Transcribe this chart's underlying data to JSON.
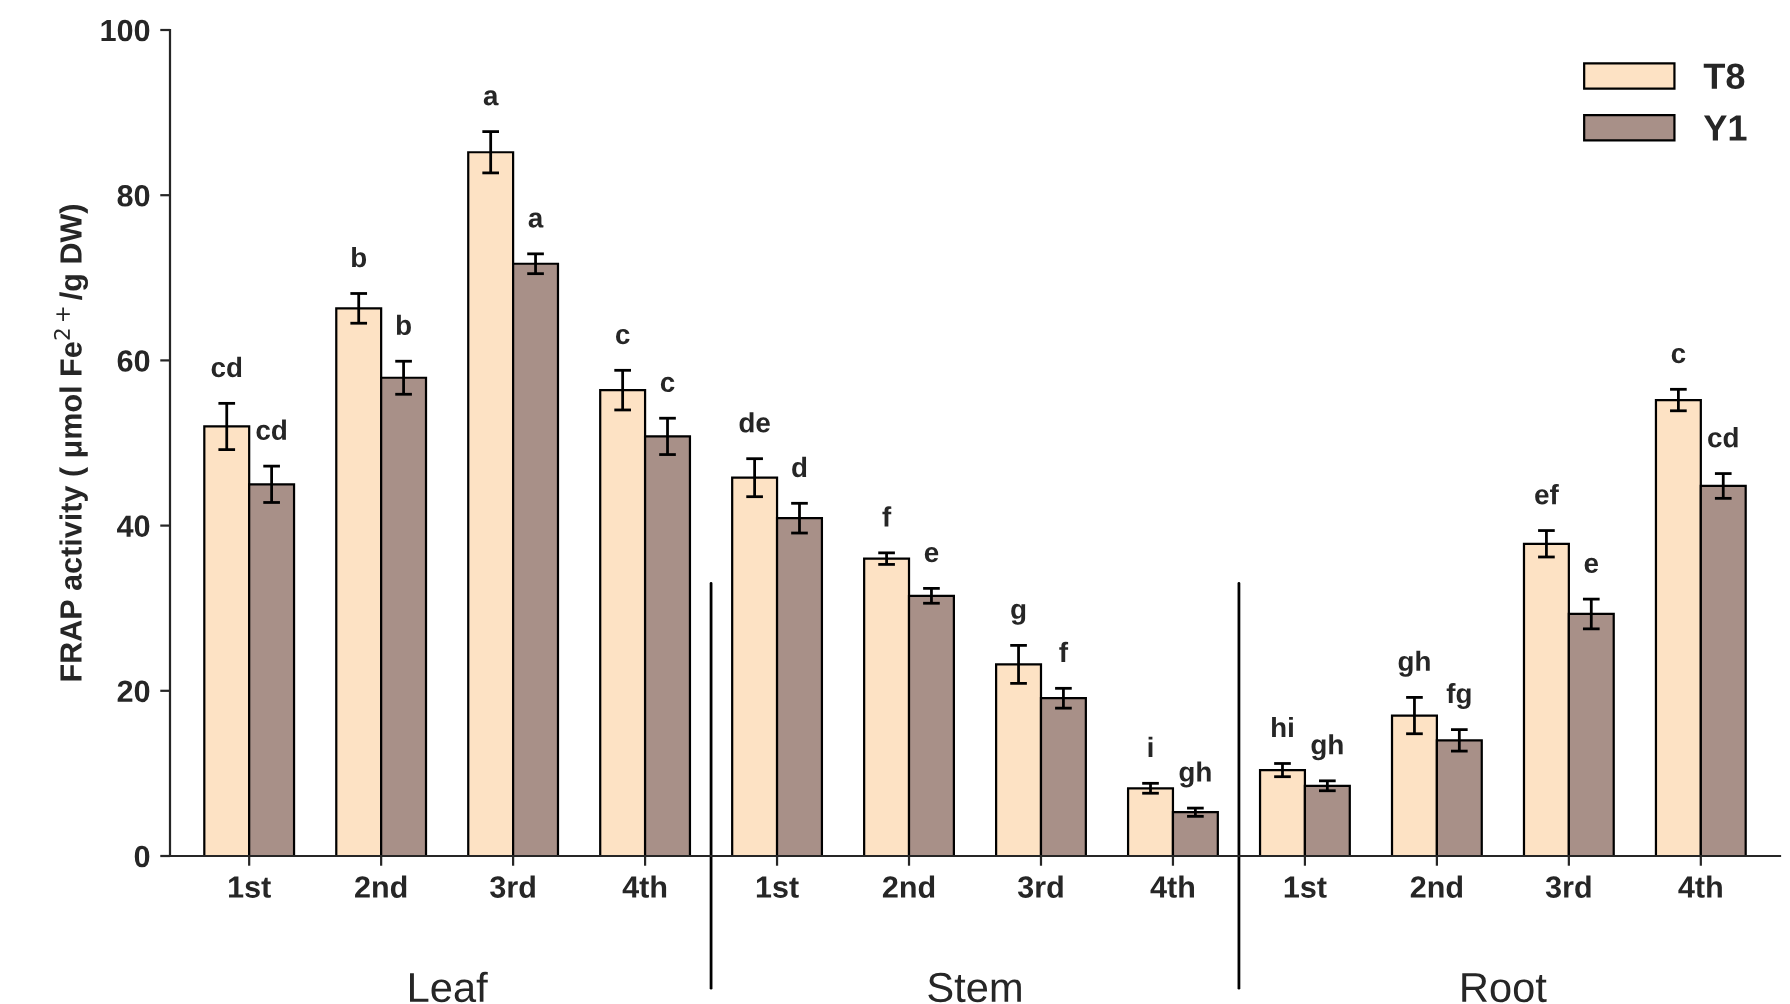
{
  "chart_data": {
    "type": "bar",
    "ylabel": "FRAP activity ( μmol Fe$^{2+}$/g DW)",
    "categories": [
      "1st",
      "2nd",
      "3rd",
      "4th",
      "1st",
      "2nd",
      "3rd",
      "4th",
      "1st",
      "2nd",
      "3rd",
      "4th"
    ],
    "series": [
      {
        "name": "T8",
        "color": "#fde2c4",
        "values": [
          52,
          66.3,
          85.2,
          56.4,
          45.8,
          36,
          23.2,
          8.2,
          10.4,
          17,
          37.8,
          55.2
        ],
        "errors": [
          2.8,
          1.8,
          2.5,
          2.4,
          2.3,
          0.7,
          2.3,
          0.6,
          0.8,
          2.2,
          1.6,
          1.3
        ],
        "value_labels": [
          "cd",
          "b",
          "a",
          "c",
          "de",
          "f",
          "g",
          "i",
          "hi",
          "gh",
          "ef",
          "c"
        ]
      },
      {
        "name": "Y1",
        "color": "#a89088",
        "values": [
          45,
          57.9,
          71.7,
          50.8,
          40.9,
          31.5,
          19.1,
          5.3,
          8.5,
          14,
          29.3,
          44.8
        ],
        "errors": [
          2.2,
          2,
          1.2,
          2.2,
          1.8,
          0.9,
          1.2,
          0.5,
          0.6,
          1.3,
          1.8,
          1.5
        ],
        "value_labels": [
          "cd",
          "b",
          "a",
          "c",
          "d",
          "e",
          "f",
          "gh",
          "gh",
          "fg",
          "e",
          "cd"
        ]
      }
    ],
    "ylim": [
      0,
      100
    ],
    "yticks": [
      0,
      20,
      40,
      60,
      80,
      100
    ],
    "grid": false,
    "legend": "top right",
    "annotations": [
      "Leaf",
      "Stem",
      "Root"
    ]
  }
}
